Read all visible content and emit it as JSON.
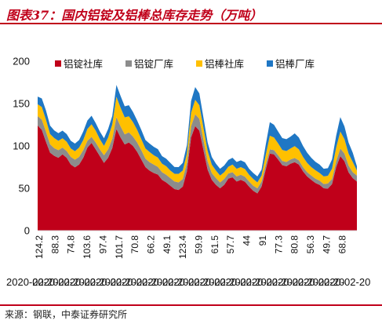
{
  "figure": {
    "title": "图表37：国内铝锭及铝棒总库存走势（万吨）",
    "source": "来源：钢联，中泰证券研究所"
  },
  "chart_data": {
    "type": "area",
    "stacked": true,
    "title": "",
    "ylim": [
      0,
      200
    ],
    "yticks": [
      0,
      50,
      100,
      150,
      200
    ],
    "x_tick_labels": [
      "124.2",
      "88.3",
      "74.8",
      "103.6",
      "97.4",
      "101.7",
      "70.8",
      "66.2",
      "49.1",
      "123.4",
      "59.9",
      "61.5",
      "57.7",
      "44",
      "91",
      "77.3",
      "80.8",
      "56.3",
      "49.7",
      "68.8"
    ],
    "x_date_label": "2020-02-20",
    "legend": {
      "position": "top",
      "orientation": "horizontal"
    },
    "colors": {
      "aluminum_ingot_social": "#c0001a",
      "aluminum_ingot_plant": "#8c8c8c",
      "aluminum_bar_social": "#ffc000",
      "aluminum_bar_plant": "#1f77c4"
    },
    "series": [
      {
        "name": "铝锭社库",
        "key": "aluminum_ingot_social",
        "values": [
          124.2,
          119,
          105,
          92,
          88.3,
          86,
          90,
          86,
          78,
          74.8,
          78,
          86,
          98,
          103.6,
          96,
          88,
          80,
          86,
          97.4,
          120,
          110,
          101.7,
          104,
          100,
          93,
          84,
          75,
          70.8,
          68,
          66.2,
          60,
          57,
          53,
          49.1,
          48,
          52,
          70,
          110,
          123.4,
          118,
          95,
          72,
          59.9,
          54,
          50,
          54,
          61.5,
          63,
          58,
          60,
          57.7,
          52,
          47,
          44,
          52,
          72,
          91,
          90,
          84,
          77.3,
          76,
          79,
          80.8,
          78,
          70,
          64,
          60,
          56.3,
          54,
          50,
          49.7,
          55,
          75,
          88,
          82,
          68.8,
          62,
          58
        ]
      },
      {
        "name": "铝锭厂库",
        "key": "aluminum_ingot_plant",
        "values": [
          11,
          12,
          12,
          10,
          9,
          9,
          8,
          8,
          9,
          9,
          9,
          9,
          8,
          7,
          8,
          8,
          9,
          10,
          11,
          14,
          13,
          12,
          12,
          11,
          11,
          11,
          10,
          10,
          10,
          9,
          9,
          9,
          9,
          9,
          9,
          9,
          10,
          13,
          14,
          14,
          12,
          10,
          8,
          8,
          7,
          7,
          6,
          6,
          6,
          6,
          6,
          6,
          6,
          6,
          6,
          6,
          5,
          5,
          5,
          5,
          5,
          5,
          5,
          5,
          5,
          5,
          5,
          5,
          5,
          5,
          6,
          6,
          7,
          9,
          9,
          8,
          7,
          7
        ]
      },
      {
        "name": "铝棒社库",
        "key": "aluminum_bar_social",
        "values": [
          14,
          15,
          14,
          12,
          12,
          11,
          11,
          11,
          10,
          10,
          11,
          12,
          14,
          15,
          14,
          12,
          11,
          14,
          17,
          24,
          22,
          20,
          19,
          17,
          15,
          13,
          12,
          12,
          11,
          11,
          10,
          10,
          9,
          9,
          10,
          10,
          11,
          16,
          17,
          16,
          14,
          12,
          10,
          9,
          8,
          8,
          8,
          9,
          9,
          9,
          9,
          8,
          8,
          7,
          7,
          11,
          16,
          15,
          14,
          13,
          13,
          13,
          14,
          13,
          12,
          11,
          10,
          10,
          9,
          9,
          9,
          12,
          16,
          20,
          17,
          14,
          12,
          6
        ]
      },
      {
        "name": "铝棒厂库",
        "key": "aluminum_bar_plant",
        "values": [
          9,
          10,
          11,
          10,
          9,
          9,
          9,
          9,
          9,
          9,
          9,
          10,
          10,
          10,
          9,
          9,
          9,
          10,
          10,
          14,
          14,
          13,
          13,
          12,
          11,
          11,
          10,
          10,
          10,
          10,
          9,
          9,
          9,
          8,
          8,
          9,
          10,
          14,
          15,
          14,
          12,
          10,
          9,
          8,
          8,
          8,
          8,
          8,
          8,
          8,
          8,
          7,
          7,
          7,
          7,
          12,
          16,
          15,
          14,
          14,
          14,
          14,
          15,
          14,
          13,
          12,
          11,
          10,
          10,
          9,
          9,
          11,
          14,
          17,
          15,
          13,
          11,
          5
        ]
      }
    ]
  }
}
